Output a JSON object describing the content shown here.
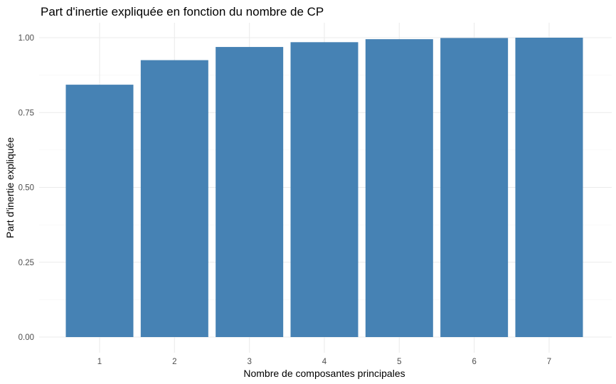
{
  "chart_data": {
    "type": "bar",
    "title": "Part d'inertie expliquée en fonction du nombre de CP",
    "xlabel": "Nombre de composantes principales",
    "ylabel": "Part d'inertie expliquée",
    "categories": [
      "1",
      "2",
      "3",
      "4",
      "5",
      "6",
      "7"
    ],
    "values": [
      0.843,
      0.925,
      0.969,
      0.985,
      0.995,
      0.999,
      1.0
    ],
    "ylim": [
      0,
      1.0
    ],
    "yticks": [
      0.0,
      0.25,
      0.5,
      0.75,
      1.0
    ],
    "ytick_labels": [
      "0.00",
      "0.25",
      "0.50",
      "0.75",
      "1.00"
    ],
    "grid": true,
    "legend": "none",
    "bar_color": "#4682B4"
  }
}
